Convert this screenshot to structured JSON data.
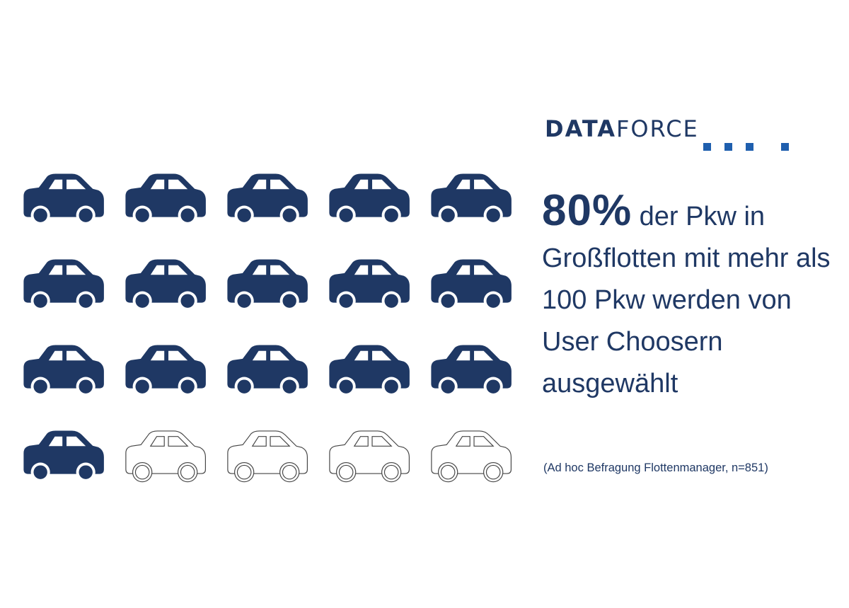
{
  "logo": {
    "part1": "DATA",
    "part2": "FORCE"
  },
  "headline": {
    "percent": "80%",
    "text": " der Pkw in Großflotten mit mehr als 100 Pkw werden von User Choosern ausgewählt"
  },
  "source": "(Ad hoc Befragung Flottenmanager, n=851)",
  "colors": {
    "primary": "#1f3864",
    "accent": "#1f5fae",
    "empty": "#ffffff"
  },
  "chart_data": {
    "type": "pictogram",
    "total": 20,
    "filled": 16,
    "columns": 5,
    "rows": 4,
    "percent": 80,
    "icon": "car-icon"
  }
}
